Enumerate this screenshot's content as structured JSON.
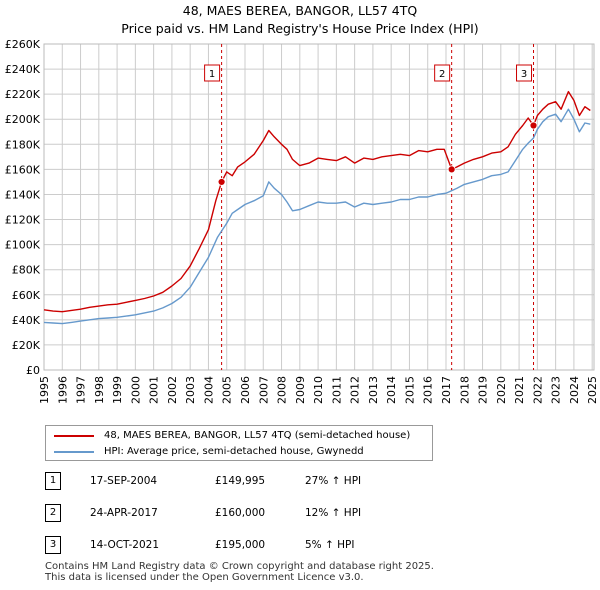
{
  "chart_data": {
    "type": "line",
    "title": "48, MAES BEREA, BANGOR, LL57 4TQ",
    "subtitle": "Price paid vs. HM Land Registry's House Price Index (HPI)",
    "xlim": [
      1995,
      2025.1
    ],
    "ylim": [
      0,
      260000
    ],
    "yticks": [
      {
        "value": 0,
        "label": "£0"
      },
      {
        "value": 20000,
        "label": "£20K"
      },
      {
        "value": 40000,
        "label": "£40K"
      },
      {
        "value": 60000,
        "label": "£60K"
      },
      {
        "value": 80000,
        "label": "£80K"
      },
      {
        "value": 100000,
        "label": "£100K"
      },
      {
        "value": 120000,
        "label": "£120K"
      },
      {
        "value": 140000,
        "label": "£140K"
      },
      {
        "value": 160000,
        "label": "£160K"
      },
      {
        "value": 180000,
        "label": "£180K"
      },
      {
        "value": 200000,
        "label": "£200K"
      },
      {
        "value": 220000,
        "label": "£220K"
      },
      {
        "value": 240000,
        "label": "£240K"
      },
      {
        "value": 260000,
        "label": "£260K"
      }
    ],
    "xticks": [
      "1995",
      "1996",
      "1997",
      "1998",
      "1999",
      "2000",
      "2001",
      "2002",
      "2003",
      "2004",
      "2005",
      "2006",
      "2007",
      "2008",
      "2009",
      "2010",
      "2011",
      "2012",
      "2013",
      "2014",
      "2015",
      "2016",
      "2017",
      "2018",
      "2019",
      "2020",
      "2021",
      "2022",
      "2023",
      "2024",
      "2025"
    ],
    "grid": true,
    "series": [
      {
        "name": "48, MAES BEREA, BANGOR, LL57 4TQ (semi-detached house)",
        "color": "#cc0000",
        "points": [
          [
            1995.0,
            48000
          ],
          [
            1995.5,
            47000
          ],
          [
            1996.0,
            46500
          ],
          [
            1996.5,
            47500
          ],
          [
            1997.0,
            48500
          ],
          [
            1997.5,
            50000
          ],
          [
            1998.0,
            51000
          ],
          [
            1998.5,
            52000
          ],
          [
            1999.0,
            52500
          ],
          [
            1999.5,
            54000
          ],
          [
            2000.0,
            55500
          ],
          [
            2000.5,
            57000
          ],
          [
            2001.0,
            59000
          ],
          [
            2001.5,
            62000
          ],
          [
            2002.0,
            67000
          ],
          [
            2002.5,
            73000
          ],
          [
            2003.0,
            83000
          ],
          [
            2003.5,
            97000
          ],
          [
            2004.0,
            112000
          ],
          [
            2004.4,
            135000
          ],
          [
            2004.72,
            149995
          ],
          [
            2005.0,
            158000
          ],
          [
            2005.3,
            155000
          ],
          [
            2005.6,
            162000
          ],
          [
            2006.0,
            166000
          ],
          [
            2006.5,
            172000
          ],
          [
            2007.0,
            183000
          ],
          [
            2007.3,
            191000
          ],
          [
            2007.6,
            186000
          ],
          [
            2008.0,
            180000
          ],
          [
            2008.3,
            176000
          ],
          [
            2008.6,
            168000
          ],
          [
            2009.0,
            163000
          ],
          [
            2009.5,
            165000
          ],
          [
            2010.0,
            169000
          ],
          [
            2010.5,
            168000
          ],
          [
            2011.0,
            167000
          ],
          [
            2011.5,
            170000
          ],
          [
            2012.0,
            165000
          ],
          [
            2012.5,
            169000
          ],
          [
            2013.0,
            168000
          ],
          [
            2013.5,
            170000
          ],
          [
            2014.0,
            171000
          ],
          [
            2014.5,
            172000
          ],
          [
            2015.0,
            171000
          ],
          [
            2015.5,
            175000
          ],
          [
            2016.0,
            174000
          ],
          [
            2016.5,
            176000
          ],
          [
            2016.9,
            176000
          ],
          [
            2017.31,
            160000
          ],
          [
            2017.6,
            162000
          ],
          [
            2018.0,
            165000
          ],
          [
            2018.5,
            168000
          ],
          [
            2019.0,
            170000
          ],
          [
            2019.5,
            173000
          ],
          [
            2020.0,
            174000
          ],
          [
            2020.4,
            178000
          ],
          [
            2020.8,
            188000
          ],
          [
            2021.2,
            195000
          ],
          [
            2021.5,
            201000
          ],
          [
            2021.79,
            195000
          ],
          [
            2022.0,
            203000
          ],
          [
            2022.3,
            208000
          ],
          [
            2022.6,
            212000
          ],
          [
            2023.0,
            214000
          ],
          [
            2023.3,
            208000
          ],
          [
            2023.7,
            222000
          ],
          [
            2024.0,
            215000
          ],
          [
            2024.3,
            203000
          ],
          [
            2024.6,
            210000
          ],
          [
            2024.9,
            207000
          ]
        ]
      },
      {
        "name": "HPI: Average price, semi-detached house, Gwynedd",
        "color": "#6699cc",
        "points": [
          [
            1995.0,
            38000
          ],
          [
            1995.5,
            37500
          ],
          [
            1996.0,
            37000
          ],
          [
            1996.5,
            38000
          ],
          [
            1997.0,
            39000
          ],
          [
            1997.5,
            40000
          ],
          [
            1998.0,
            41000
          ],
          [
            1998.5,
            41500
          ],
          [
            1999.0,
            42000
          ],
          [
            1999.5,
            43000
          ],
          [
            2000.0,
            44000
          ],
          [
            2000.5,
            45500
          ],
          [
            2001.0,
            47000
          ],
          [
            2001.5,
            49500
          ],
          [
            2002.0,
            53000
          ],
          [
            2002.5,
            58000
          ],
          [
            2003.0,
            66000
          ],
          [
            2003.5,
            78000
          ],
          [
            2004.0,
            90000
          ],
          [
            2004.5,
            106000
          ],
          [
            2005.0,
            117000
          ],
          [
            2005.3,
            125000
          ],
          [
            2005.6,
            128000
          ],
          [
            2006.0,
            132000
          ],
          [
            2006.5,
            135000
          ],
          [
            2007.0,
            139000
          ],
          [
            2007.3,
            150000
          ],
          [
            2007.6,
            145000
          ],
          [
            2008.0,
            140000
          ],
          [
            2008.3,
            134000
          ],
          [
            2008.6,
            127000
          ],
          [
            2009.0,
            128000
          ],
          [
            2009.5,
            131000
          ],
          [
            2010.0,
            134000
          ],
          [
            2010.5,
            133000
          ],
          [
            2011.0,
            133000
          ],
          [
            2011.5,
            134000
          ],
          [
            2012.0,
            130000
          ],
          [
            2012.5,
            133000
          ],
          [
            2013.0,
            132000
          ],
          [
            2013.5,
            133000
          ],
          [
            2014.0,
            134000
          ],
          [
            2014.5,
            136000
          ],
          [
            2015.0,
            136000
          ],
          [
            2015.5,
            138000
          ],
          [
            2016.0,
            138000
          ],
          [
            2016.5,
            140000
          ],
          [
            2017.0,
            141000
          ],
          [
            2017.3,
            143000
          ],
          [
            2017.6,
            145000
          ],
          [
            2018.0,
            148000
          ],
          [
            2018.5,
            150000
          ],
          [
            2019.0,
            152000
          ],
          [
            2019.5,
            155000
          ],
          [
            2020.0,
            156000
          ],
          [
            2020.4,
            158000
          ],
          [
            2020.8,
            167000
          ],
          [
            2021.2,
            176000
          ],
          [
            2021.5,
            181000
          ],
          [
            2021.79,
            185000
          ],
          [
            2022.0,
            192000
          ],
          [
            2022.3,
            198000
          ],
          [
            2022.6,
            202000
          ],
          [
            2023.0,
            204000
          ],
          [
            2023.3,
            198000
          ],
          [
            2023.7,
            208000
          ],
          [
            2024.0,
            200000
          ],
          [
            2024.3,
            190000
          ],
          [
            2024.6,
            197000
          ],
          [
            2024.9,
            196000
          ]
        ]
      }
    ],
    "sales": [
      {
        "num": "1",
        "date": "17-SEP-2004",
        "price": "£149,995",
        "hpi": "27% ↑ HPI",
        "x": 2004.72,
        "y": 149995
      },
      {
        "num": "2",
        "date": "24-APR-2017",
        "price": "£160,000",
        "hpi": "12% ↑ HPI",
        "x": 2017.31,
        "y": 160000
      },
      {
        "num": "3",
        "date": "14-OCT-2021",
        "price": "£195,000",
        "hpi": "5% ↑ HPI",
        "x": 2021.79,
        "y": 195000
      }
    ]
  },
  "legend": {
    "property": "48, MAES BEREA, BANGOR, LL57 4TQ (semi-detached house)",
    "hpi": "HPI: Average price, semi-detached house, Gwynedd"
  },
  "footer": {
    "line1": "Contains HM Land Registry data © Crown copyright and database right 2025.",
    "line2": "This data is licensed under the Open Government Licence v3.0."
  },
  "colors": {
    "property": "#cc0000",
    "hpi": "#6699cc",
    "grid": "#cccccc",
    "marker_line": "#cc0000"
  }
}
